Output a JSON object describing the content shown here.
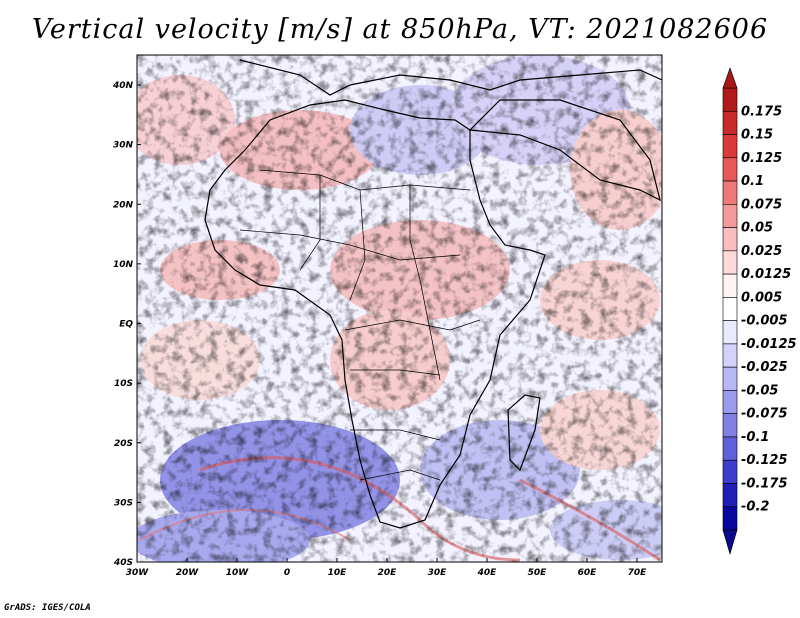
{
  "title": "Vertical velocity [m/s] at 850hPa, VT: 2021082606",
  "credit": "GrADS: IGES/COLA",
  "map": {
    "lat_ticks": [
      "40N",
      "30N",
      "20N",
      "10N",
      "EQ",
      "10S",
      "20S",
      "30S",
      "40S"
    ],
    "lon_ticks": [
      "30W",
      "20W",
      "10W",
      "0",
      "10E",
      "20E",
      "30E",
      "40E",
      "50E",
      "60E",
      "70E"
    ]
  },
  "colorbar": {
    "labels": [
      "0.175",
      "0.15",
      "0.125",
      "0.1",
      "0.075",
      "0.05",
      "0.025",
      "0.0125",
      "0.005",
      "-0.005",
      "-0.0125",
      "-0.025",
      "-0.05",
      "-0.075",
      "-0.1",
      "-0.125",
      "-0.175",
      "-0.2"
    ],
    "colors": [
      "#b31b1b",
      "#c92a2a",
      "#dc3a3a",
      "#e85858",
      "#ef7878",
      "#f59a9a",
      "#f9bdbd",
      "#fcdada",
      "#fff2f2",
      "#ffffff",
      "#eaeaff",
      "#d2d2fa",
      "#b8b8f4",
      "#9c9cee",
      "#8080e6",
      "#6060dc",
      "#3e3ece",
      "#2020b8",
      "#0808a0"
    ]
  }
}
